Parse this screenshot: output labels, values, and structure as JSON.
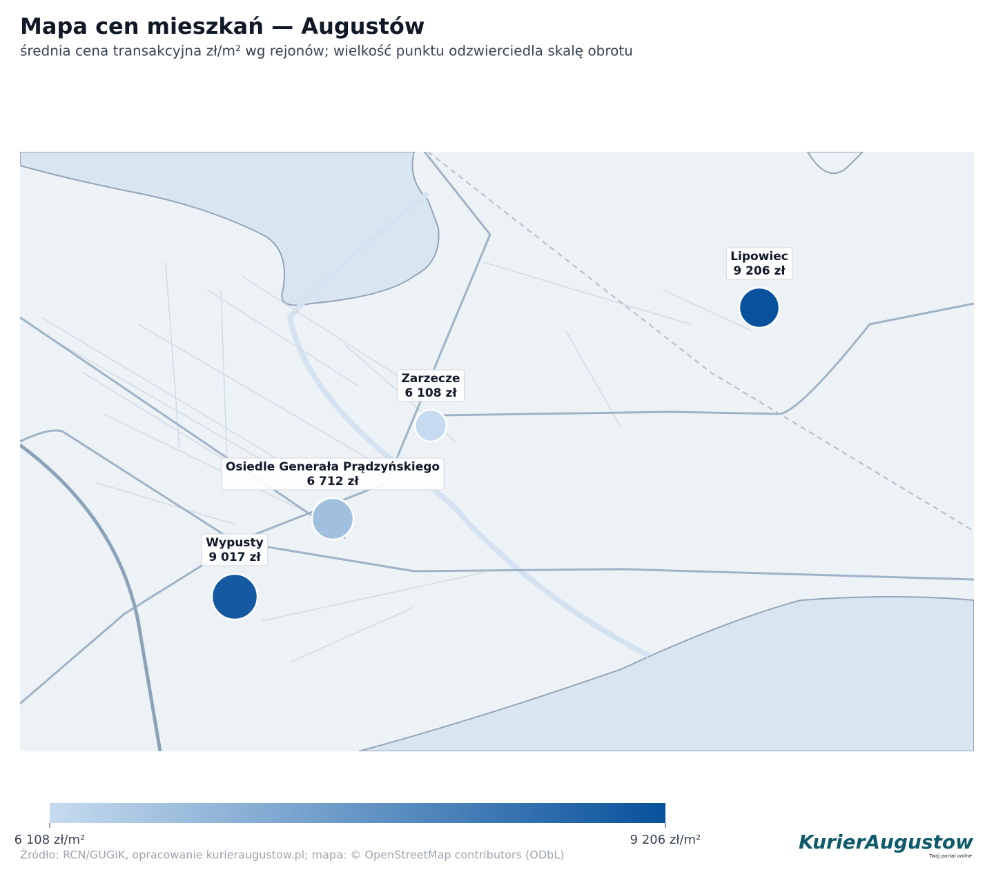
{
  "map": {
    "title": "Mapa cen mieszkań — Augustów",
    "subtitle": "średnia cena transakcyjna zł/m² wg rejonów; wielkość punktu odzwierciedla skalę obrotu",
    "points": [
      {
        "name": "Lipowiec",
        "value": 9206,
        "value_label": "9 206 zł"
      },
      {
        "name": "Zarzecze",
        "value": 6108,
        "value_label": "6 108 zł"
      },
      {
        "name": "Osiedle Generała Prądzyńskiego",
        "value": 6712,
        "value_label": "6 712 zł"
      },
      {
        "name": "Wypusty",
        "value": 9017,
        "value_label": "9 017 zł"
      }
    ],
    "colorbar": {
      "colors": [
        "#c6dbef",
        "#08519c"
      ],
      "ticks": [
        {
          "value": 6108,
          "label": "6 108 zł/m²"
        },
        {
          "value": 9206,
          "label": "9 206 zł/m²"
        }
      ]
    },
    "source": "Źródło: RCN/GUGiK, opracowanie kurieraugustow.pl; mapa: © OpenStreetMap contributors (ODbL)",
    "logo": {
      "name": "KurierAugustow",
      "tagline": "Twój portal online"
    }
  }
}
